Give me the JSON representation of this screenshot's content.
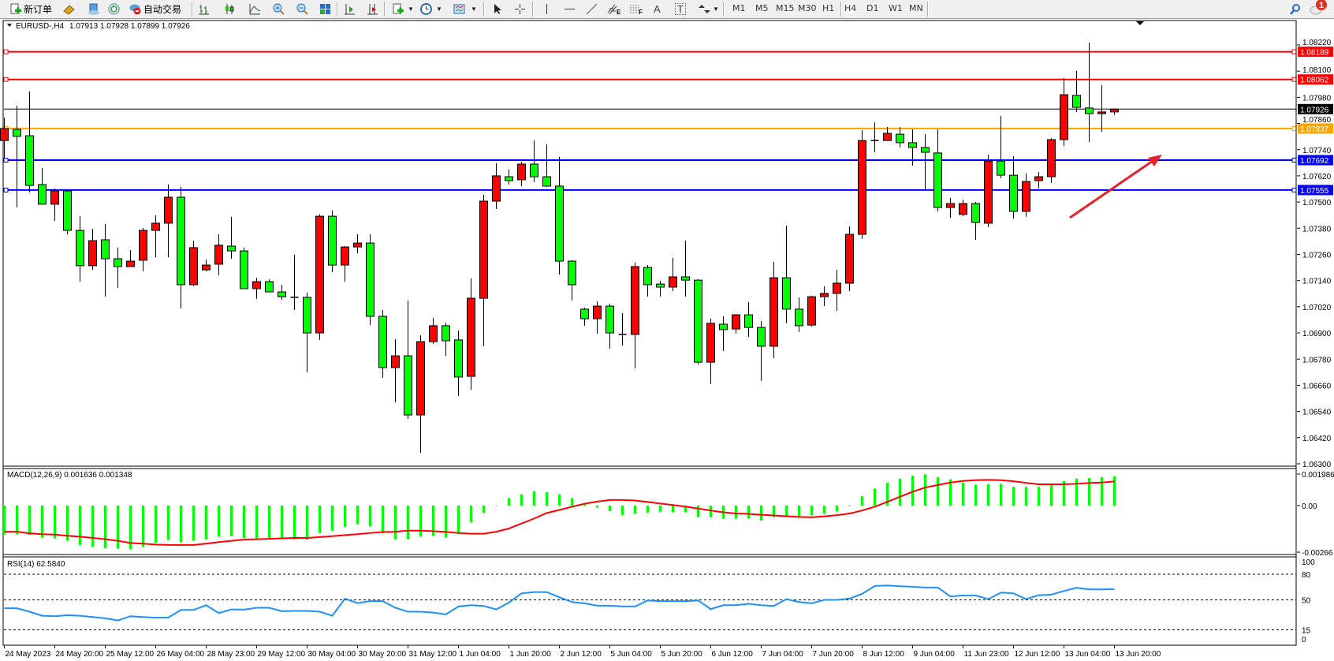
{
  "toolbar": {
    "new_order_label": "新订单",
    "auto_trading_label": "自动交易",
    "icons": [
      "new-order-icon",
      "gold-ingot-icon",
      "terminal-icon",
      "signal-icon",
      "auto-trading-icon",
      "bar-chart-icon",
      "candlestick-chart-icon",
      "line-chart-icon",
      "zoom-in-icon",
      "zoom-out-icon",
      "tile-windows-icon",
      "auto-scroll-icon",
      "chart-shift-icon",
      "new-chart-icon",
      "periods-clock-icon",
      "templates-icon",
      "cursor-icon",
      "crosshair-icon",
      "vertical-line-icon",
      "horizontal-line-icon",
      "trendline-icon",
      "fibonacci-channel-icon",
      "fibonacci-retracement-icon",
      "text-icon",
      "text-label-icon",
      "arrows-icon",
      "search-icon",
      "chat-icon"
    ],
    "fib_e": "E",
    "fib_f": "F",
    "text_a": "A",
    "text_t": "T",
    "timeframes": [
      "M1",
      "M5",
      "M15",
      "M30",
      "H1",
      "H4",
      "D1",
      "W1",
      "MN"
    ],
    "active_timeframe": "H4",
    "notification_count": "1"
  },
  "chart": {
    "symbol_header": "EURUSD-,H4",
    "ohlc_header": "1.07913 1.07928 1.07899 1.07926",
    "colors": {
      "bull": "#ff0000",
      "bear": "#00ff00",
      "macd_hist": "#00ff00",
      "macd_signal": "#ff0000",
      "rsi": "#1e90ff",
      "arrow": "#e8202a"
    },
    "price_ticks": [
      "1.08220",
      "1.08100",
      "1.07980",
      "1.07860",
      "1.07740",
      "1.07620",
      "1.07500",
      "1.07380",
      "1.07260",
      "1.07140",
      "1.07020",
      "1.06900",
      "1.06780",
      "1.06660",
      "1.06540",
      "1.06420",
      "1.06300"
    ],
    "price_range": [
      1.063,
      1.0822
    ],
    "current_price": "1.07926",
    "levels": [
      {
        "price": "1.08189",
        "color": "#ff0000"
      },
      {
        "price": "1.08062",
        "color": "#ff0000"
      },
      {
        "price": "1.07837",
        "color": "#ffa500"
      },
      {
        "price": "1.07692",
        "color": "#0000ff"
      },
      {
        "price": "1.07555",
        "color": "#0000ff"
      }
    ],
    "time_labels": [
      "24 May 2023",
      "24 May 20:00",
      "25 May 12:00",
      "26 May 04:00",
      "28 May 23:00",
      "29 May 12:00",
      "30 May 04:00",
      "30 May 20:00",
      "31 May 12:00",
      "1 Jun 04:00",
      "1 Jun 20:00",
      "2 Jun 12:00",
      "5 Jun 04:00",
      "5 Jun 20:00",
      "6 Jun 12:00",
      "7 Jun 04:00",
      "7 Jun 20:00",
      "8 Jun 12:00",
      "9 Jun 04:00",
      "11 Jun 23:00",
      "12 Jun 12:00",
      "13 Jun 04:00",
      "13 Jun 20:00"
    ],
    "candles_ohlc": [
      [
        1.07782,
        1.07887,
        1.07703,
        1.07837
      ],
      [
        1.07833,
        1.07942,
        1.07475,
        1.07801
      ],
      [
        1.07804,
        1.08007,
        1.07544,
        1.07576
      ],
      [
        1.0758,
        1.07656,
        1.0749,
        1.0749
      ],
      [
        1.0749,
        1.07562,
        1.07414,
        1.07551
      ],
      [
        1.07551,
        1.07551,
        1.07352,
        1.0737
      ],
      [
        1.0737,
        1.07435,
        1.07135,
        1.07208
      ],
      [
        1.07208,
        1.07377,
        1.07189,
        1.07323
      ],
      [
        1.07327,
        1.07399,
        1.07066,
        1.0724
      ],
      [
        1.0724,
        1.07291,
        1.07106,
        1.07204
      ],
      [
        1.07204,
        1.0728,
        1.07204,
        1.07229
      ],
      [
        1.07233,
        1.07381,
        1.07182,
        1.0737
      ],
      [
        1.0737,
        1.07439,
        1.07247,
        1.07403
      ],
      [
        1.07403,
        1.0758,
        1.07247,
        1.07522
      ],
      [
        1.07522,
        1.07569,
        1.07012,
        1.07121
      ],
      [
        1.07121,
        1.07323,
        1.07114,
        1.07291
      ],
      [
        1.07189,
        1.07236,
        1.07182,
        1.07211
      ],
      [
        1.07215,
        1.07352,
        1.07164,
        1.07302
      ],
      [
        1.07298,
        1.07432,
        1.0724,
        1.07276
      ],
      [
        1.07276,
        1.07291,
        1.07103,
        1.07103
      ],
      [
        1.07103,
        1.07153,
        1.07056,
        1.07135
      ],
      [
        1.07135,
        1.07146,
        1.07088,
        1.07088
      ],
      [
        1.07088,
        1.07121,
        1.07052,
        1.07066
      ],
      [
        1.07063,
        1.07258,
        1.07005,
        1.07063
      ],
      [
        1.07063,
        1.07085,
        1.06719,
        1.069
      ],
      [
        1.069,
        1.07443,
        1.06868,
        1.07435
      ],
      [
        1.07435,
        1.07461,
        1.07179,
        1.07211
      ],
      [
        1.07211,
        1.07298,
        1.07135,
        1.07294
      ],
      [
        1.07294,
        1.07352,
        1.07265,
        1.07312
      ],
      [
        1.07312,
        1.07352,
        1.06936,
        1.06976
      ],
      [
        1.06976,
        1.07005,
        1.06694,
        1.06741
      ],
      [
        1.06741,
        1.06871,
        1.06582,
        1.06795
      ],
      [
        1.06795,
        1.07048,
        1.06506,
        1.06524
      ],
      [
        1.06524,
        1.06889,
        1.0635,
        1.0686
      ],
      [
        1.0686,
        1.06969,
        1.0685,
        1.06933
      ],
      [
        1.06933,
        1.06947,
        1.06795,
        1.06864
      ],
      [
        1.06868,
        1.06911,
        1.06611,
        1.06698
      ],
      [
        1.06701,
        1.0715,
        1.0664,
        1.07059
      ],
      [
        1.07059,
        1.07533,
        1.06839,
        1.07504
      ],
      [
        1.07504,
        1.07678,
        1.07468,
        1.0762
      ],
      [
        1.07616,
        1.07649,
        1.0758,
        1.07598
      ],
      [
        1.07602,
        1.07685,
        1.07573,
        1.07674
      ],
      [
        1.07674,
        1.07782,
        1.07591,
        1.07616
      ],
      [
        1.07616,
        1.07764,
        1.07569,
        1.07573
      ],
      [
        1.07573,
        1.07707,
        1.07168,
        1.07229
      ],
      [
        1.07229,
        1.07233,
        1.07048,
        1.07121
      ],
      [
        1.07009,
        1.07016,
        1.06933,
        1.06965
      ],
      [
        1.06965,
        1.07045,
        1.06896,
        1.07023
      ],
      [
        1.07023,
        1.07034,
        1.06828,
        1.069
      ],
      [
        1.06893,
        1.06991,
        1.06842,
        1.06893
      ],
      [
        1.06893,
        1.07222,
        1.06737,
        1.07204
      ],
      [
        1.072,
        1.07211,
        1.07066,
        1.07121
      ],
      [
        1.07124,
        1.07139,
        1.07066,
        1.0711
      ],
      [
        1.0711,
        1.07244,
        1.07092,
        1.07157
      ],
      [
        1.07157,
        1.07323,
        1.07066,
        1.07142
      ],
      [
        1.07142,
        1.07146,
        1.06755,
        1.06766
      ],
      [
        1.06766,
        1.06965,
        1.06665,
        1.06944
      ],
      [
        1.0694,
        1.06976,
        1.06817,
        1.06915
      ],
      [
        1.06918,
        1.06987,
        1.06896,
        1.06983
      ],
      [
        1.06983,
        1.07041,
        1.06882,
        1.06925
      ],
      [
        1.06925,
        1.06954,
        1.0668,
        1.06839
      ],
      [
        1.06839,
        1.07226,
        1.06784,
        1.07153
      ],
      [
        1.07153,
        1.07392,
        1.06944,
        1.07009
      ],
      [
        1.07009,
        1.07063,
        1.06904,
        1.06933
      ],
      [
        1.06936,
        1.0707,
        1.06929,
        1.07066
      ],
      [
        1.07066,
        1.07114,
        1.07023,
        1.07081
      ],
      [
        1.07081,
        1.07189,
        1.07001,
        1.07128
      ],
      [
        1.07128,
        1.07388,
        1.07092,
        1.07352
      ],
      [
        1.07352,
        1.07829,
        1.07331,
        1.07782
      ],
      [
        1.07782,
        1.07866,
        1.07728,
        1.07782
      ],
      [
        1.07782,
        1.07844,
        1.07782,
        1.07815
      ],
      [
        1.07811,
        1.07844,
        1.0775,
        1.07772
      ],
      [
        1.07772,
        1.07833,
        1.07667,
        1.0775
      ],
      [
        1.0775,
        1.07811,
        1.07558,
        1.07728
      ],
      [
        1.07725,
        1.07833,
        1.07457,
        1.07475
      ],
      [
        1.07475,
        1.07519,
        1.07428,
        1.07493
      ],
      [
        1.07443,
        1.07511,
        1.07435,
        1.07493
      ],
      [
        1.07493,
        1.075,
        1.07327,
        1.07406
      ],
      [
        1.07403,
        1.07717,
        1.07385,
        1.07688
      ],
      [
        1.07688,
        1.07895,
        1.07609,
        1.07623
      ],
      [
        1.07623,
        1.0771,
        1.07424,
        1.07457
      ],
      [
        1.07457,
        1.07631,
        1.07432,
        1.07594
      ],
      [
        1.07598,
        1.07638,
        1.07562,
        1.07616
      ],
      [
        1.07616,
        1.07793,
        1.07587,
        1.07786
      ],
      [
        1.07786,
        1.08068,
        1.07757,
        1.07992
      ],
      [
        1.07989,
        1.08101,
        1.07913,
        1.07934
      ],
      [
        1.07931,
        1.08231,
        1.07775,
        1.07905
      ],
      [
        1.07905,
        1.08036,
        1.07822,
        1.07913
      ],
      [
        1.07913,
        1.07928,
        1.07899,
        1.07926
      ]
    ]
  },
  "macd": {
    "label": "MACD(12,26,9) 0.001636 0.001348",
    "ticks": [
      "0.001986",
      "0.00",
      "-0.00266"
    ],
    "range": [
      -0.00266,
      0.001986
    ],
    "histogram": [
      -0.00162,
      -0.00162,
      -0.00165,
      -0.00179,
      -0.00184,
      -0.00198,
      -0.00221,
      -0.00231,
      -0.00238,
      -0.00242,
      -0.00246,
      -0.00231,
      -0.0021,
      -0.00193,
      -0.00205,
      -0.00196,
      -0.00191,
      -0.00175,
      -0.0017,
      -0.00182,
      -0.00184,
      -0.00182,
      -0.00182,
      -0.0019,
      -0.00191,
      -0.00154,
      -0.00141,
      -0.0012,
      -0.00105,
      -0.00116,
      -0.00156,
      -0.00191,
      -0.00189,
      -0.00175,
      -0.0017,
      -0.00179,
      -0.00161,
      -0.00095,
      -0.00042,
      -3e-05,
      0.00042,
      0.00063,
      0.0008,
      0.00075,
      0.00063,
      0.00042,
      0.00011,
      -0.00011,
      -0.00032,
      -0.00053,
      -0.00045,
      -0.00041,
      -0.00035,
      -0.00038,
      -0.00038,
      -0.00063,
      -0.00067,
      -0.00074,
      -0.00073,
      -0.00074,
      -0.00084,
      -0.00067,
      -0.00064,
      -0.00067,
      -0.00054,
      -0.00046,
      -0.00034,
      -4e-05,
      0.00053,
      0.00095,
      0.00128,
      0.00151,
      0.00168,
      0.00175,
      0.00159,
      0.00147,
      0.00128,
      0.00117,
      0.0012,
      0.00121,
      0.00105,
      0.00105,
      0.00105,
      0.00116,
      0.00137,
      0.00151,
      0.00154,
      0.00159,
      0.00164
    ],
    "signal": [
      -0.00147,
      -0.00147,
      -0.00156,
      -0.00161,
      -0.00163,
      -0.0017,
      -0.00175,
      -0.00182,
      -0.00189,
      -0.00198,
      -0.0021,
      -0.00214,
      -0.00219,
      -0.00221,
      -0.00221,
      -0.00221,
      -0.00214,
      -0.00205,
      -0.00198,
      -0.00191,
      -0.00189,
      -0.00187,
      -0.00184,
      -0.00182,
      -0.00182,
      -0.00177,
      -0.00172,
      -0.00166,
      -0.00161,
      -0.00154,
      -0.00149,
      -0.00147,
      -0.00141,
      -0.00141,
      -0.00144,
      -0.00148,
      -0.00154,
      -0.00158,
      -0.00158,
      -0.00147,
      -0.00129,
      -0.00101,
      -0.00073,
      -0.00042,
      -0.00025,
      -7e-05,
      0.0001,
      0.00022,
      0.00031,
      0.00031,
      0.00028,
      0.0002,
      0.00011,
      3e-05,
      -6e-05,
      -0.00017,
      -0.00028,
      -0.00038,
      -0.00045,
      -0.00047,
      -0.00052,
      -0.00056,
      -0.0006,
      -0.00064,
      -0.00066,
      -0.00061,
      -0.00054,
      -0.00045,
      -0.00028,
      -7e-05,
      0.00021,
      0.00049,
      0.00077,
      0.00101,
      0.00115,
      0.00129,
      0.00138,
      0.00142,
      0.00144,
      0.00142,
      0.00136,
      0.00127,
      0.00119,
      0.00119,
      0.00119,
      0.00122,
      0.00126,
      0.00129,
      0.00135
    ]
  },
  "rsi": {
    "label": "RSI(14) 62.5840",
    "ticks": [
      "100",
      "80",
      "50",
      "15",
      "0"
    ],
    "levels": [
      80,
      50,
      15
    ],
    "values": [
      40.2,
      40.2,
      36.2,
      31.5,
      30.9,
      32.2,
      31.5,
      30.0,
      28.5,
      26.0,
      30.9,
      30.0,
      29.1,
      29.4,
      38.3,
      38.3,
      43.8,
      34.6,
      38.9,
      38.6,
      40.8,
      40.8,
      36.8,
      37.1,
      37.1,
      36.2,
      31.5,
      51.5,
      46.3,
      48.5,
      48.5,
      40.8,
      36.2,
      36.2,
      35.2,
      33.1,
      42.3,
      43.8,
      42.9,
      38.9,
      46.9,
      57.7,
      59.2,
      59.2,
      53.1,
      47.5,
      46.0,
      43.2,
      43.2,
      42.3,
      42.3,
      49.4,
      48.5,
      48.5,
      48.5,
      49.4,
      39.2,
      43.8,
      43.8,
      45.4,
      43.8,
      42.9,
      50.9,
      47.5,
      46.0,
      50.0,
      50.0,
      51.5,
      57.1,
      66.3,
      66.9,
      66.0,
      65.4,
      64.5,
      64.5,
      54.0,
      55.2,
      55.2,
      50.9,
      58.6,
      57.7,
      50.9,
      55.5,
      56.2,
      60.5,
      64.2,
      62.3,
      62.3,
      62.58
    ]
  }
}
